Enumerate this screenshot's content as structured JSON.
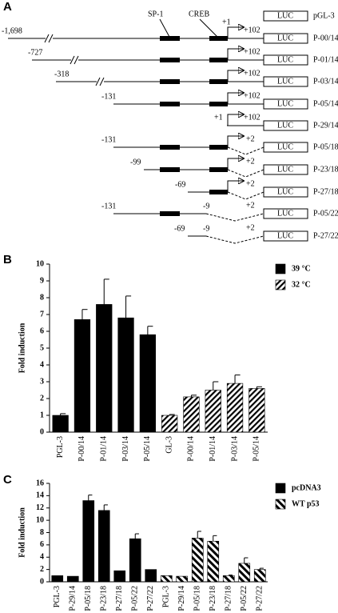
{
  "panel_a": {
    "label": "A",
    "sp1": "SP-1",
    "creb": "CREB",
    "constructs": [
      {
        "name": "pGL-3",
        "box": "LUC"
      },
      {
        "name": "P-00/14",
        "box": "LUC",
        "start": "-1,698",
        "tss": "+1",
        "end": "+102"
      },
      {
        "name": "P-01/14",
        "box": "LUC",
        "start": "-727",
        "end": "+102"
      },
      {
        "name": "P-03/14",
        "box": "LUC",
        "start": "-318",
        "end": "+102"
      },
      {
        "name": "P-05/14",
        "box": "LUC",
        "start": "-131",
        "end": "+102"
      },
      {
        "name": "P-29/14",
        "box": "LUC",
        "tss": "+1",
        "end": "+102"
      },
      {
        "name": "P-05/18",
        "box": "LUC",
        "start": "-131",
        "end": "+2"
      },
      {
        "name": "P-23/18",
        "box": "LUC",
        "start": "-99",
        "end": "+2"
      },
      {
        "name": "P-27/18",
        "box": "LUC",
        "start": "-69",
        "end": "+2"
      },
      {
        "name": "P-05/22",
        "box": "LUC",
        "start": "-131",
        "cut": "-9",
        "end": "+2"
      },
      {
        "name": "P-27/22",
        "box": "LUC",
        "start": "-69",
        "cut": "-9",
        "end": "+2"
      }
    ]
  },
  "chart_data": [
    {
      "type": "bar",
      "panel": "B",
      "ylabel": "Fold induction",
      "ylim": [
        0,
        10
      ],
      "yticks": [
        0,
        1,
        2,
        3,
        4,
        5,
        6,
        7,
        8,
        9,
        10
      ],
      "legend": "top-right",
      "categories": [
        "PGL-3",
        "P-00/14",
        "P-01/14",
        "P-03/14",
        "P-05/14",
        "GL-3",
        "P-00/14",
        "P-01/14",
        "P-03/14",
        "P-05/14"
      ],
      "series": [
        {
          "name": "39 °C",
          "color": "#000000",
          "values": [
            1.0,
            6.7,
            7.6,
            6.8,
            5.8,
            null,
            null,
            null,
            null,
            null
          ],
          "errors": [
            0.1,
            0.6,
            1.5,
            1.3,
            0.5,
            null,
            null,
            null,
            null,
            null
          ]
        },
        {
          "name": "32 °C",
          "color": "#000000",
          "pattern": "hatch",
          "values": [
            null,
            null,
            null,
            null,
            null,
            1.0,
            2.1,
            2.5,
            2.9,
            2.6
          ],
          "errors": [
            null,
            null,
            null,
            null,
            null,
            0.05,
            0.1,
            0.5,
            0.5,
            0.1
          ]
        }
      ]
    },
    {
      "type": "bar",
      "panel": "C",
      "ylabel": "Fold induction",
      "ylim": [
        0,
        16
      ],
      "yticks": [
        0,
        2,
        4,
        6,
        8,
        10,
        12,
        14,
        16
      ],
      "legend": "top-right",
      "categories": [
        "PGL-3",
        "P-29/14",
        "P-05/18",
        "P-23/18",
        "P-27/18",
        "P-05/22",
        "P-27/22",
        "PGL-3",
        "P-29/14",
        "P-05/18",
        "P-23/18",
        "P-27/18",
        "P-05/22",
        "P-27/22"
      ],
      "series": [
        {
          "name": "pcDNA3",
          "color": "#000000",
          "values": [
            1.0,
            0.9,
            13.2,
            11.6,
            1.8,
            7.0,
            2.0,
            null,
            null,
            null,
            null,
            null,
            null,
            null
          ],
          "errors": [
            0,
            0,
            0.9,
            0.9,
            0,
            0.8,
            0,
            null,
            null,
            null,
            null,
            null,
            null,
            null
          ]
        },
        {
          "name": "WT p53",
          "color": "#000000",
          "pattern": "stripes",
          "values": [
            null,
            null,
            null,
            null,
            null,
            null,
            null,
            1.0,
            0.9,
            7.1,
            6.6,
            1.0,
            3.0,
            2.0
          ],
          "errors": [
            null,
            null,
            null,
            null,
            null,
            null,
            null,
            0,
            0,
            1.1,
            0.9,
            0.1,
            0.9,
            0.2
          ]
        }
      ]
    }
  ]
}
